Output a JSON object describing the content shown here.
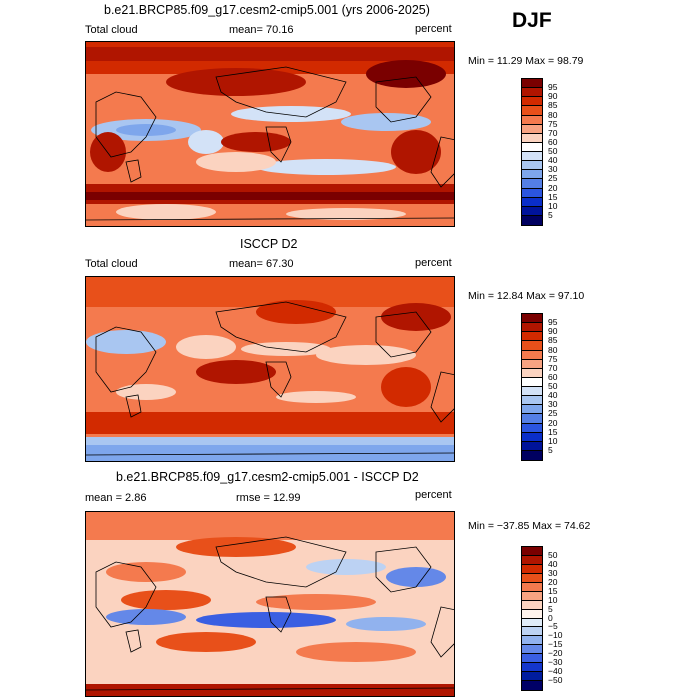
{
  "season": "DJF",
  "panels": [
    {
      "title": "b.e21.BRCP85.f09_g17.cesm2-cmip5.001 (yrs 2006-2025)",
      "left": "Total cloud",
      "mean": "mean=   70.16",
      "units": "percent",
      "minmax": "Min =   11.29  Max =   98.79",
      "levels": [
        "95",
        "90",
        "85",
        "80",
        "75",
        "70",
        "60",
        "50",
        "40",
        "30",
        "25",
        "20",
        "15",
        "10",
        "5"
      ],
      "colors": [
        "#7a0000",
        "#b01500",
        "#d22a00",
        "#e8501a",
        "#f47a4e",
        "#f7a382",
        "#fbd3c0",
        "#ffffff",
        "#d3e2f7",
        "#a9c6f1",
        "#7ea6ec",
        "#547fe6",
        "#2b55e0",
        "#0a2ec9",
        "#00139a",
        "#000060"
      ]
    },
    {
      "title": "ISCCP D2",
      "left": "Total cloud",
      "mean": "mean=   67.30",
      "units": "percent",
      "minmax": "Min =   12.84  Max =   97.10",
      "levels": [
        "95",
        "90",
        "85",
        "80",
        "75",
        "70",
        "60",
        "50",
        "40",
        "30",
        "25",
        "20",
        "15",
        "10",
        "5"
      ],
      "colors": [
        "#7a0000",
        "#b01500",
        "#d22a00",
        "#e8501a",
        "#f47a4e",
        "#f7a382",
        "#fbd3c0",
        "#ffffff",
        "#d3e2f7",
        "#a9c6f1",
        "#7ea6ec",
        "#547fe6",
        "#2b55e0",
        "#0a2ec9",
        "#00139a",
        "#000060"
      ]
    },
    {
      "title": "b.e21.BRCP85.f09_g17.cesm2-cmip5.001 - ISCCP D2",
      "left": "mean =    2.86",
      "mean": "rmse =   12.99",
      "units": "percent",
      "minmax": "Min = −37.85  Max =   74.62",
      "levels": [
        "50",
        "40",
        "30",
        "20",
        "15",
        "10",
        "5",
        "0",
        "−5",
        "−10",
        "−15",
        "−20",
        "−30",
        "−40",
        "−50"
      ],
      "colors": [
        "#7a0000",
        "#b01500",
        "#d22a00",
        "#e8501a",
        "#f47a4e",
        "#f7a382",
        "#fbd3c0",
        "#fff3ec",
        "#e0ecf9",
        "#bcd2f3",
        "#91b2ee",
        "#6488e8",
        "#3a5fe2",
        "#1436cc",
        "#001c9e",
        "#000066"
      ]
    }
  ]
}
